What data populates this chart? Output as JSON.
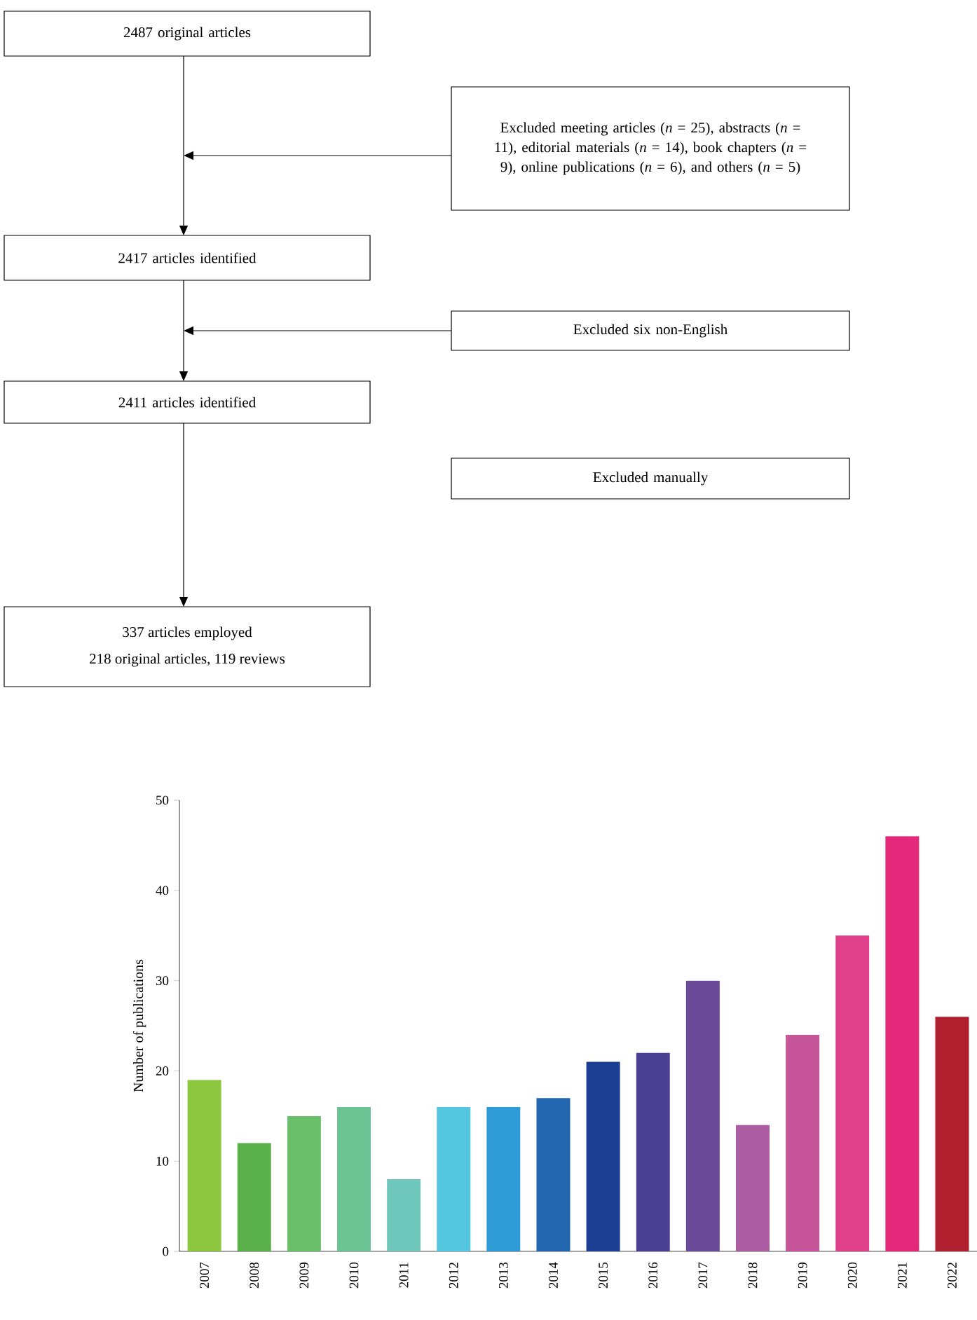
{
  "chart_data": [
    {
      "type": "other",
      "annotations": [
        "2487 original articles",
        "Excluded meeting articles (*n* = 25), abstracts (*n* = 11), editorial materials (*n* = 14), book chapters (*n* = 9), online publications (*n* = 6), and others (*n* = 5)",
        "2417 articles identified",
        "Excluded six non-English",
        "2411 articles identified",
        "Excluded manually",
        "337 articles employed",
        "218 original articles, 119 reviews"
      ]
    },
    {
      "type": "bar",
      "ylabel": "Number of publications",
      "categories": [
        "2007",
        "2008",
        "2009",
        "2010",
        "2011",
        "2012",
        "2013",
        "2014",
        "2015",
        "2016",
        "2017",
        "2018",
        "2019",
        "2020",
        "2021",
        "2022"
      ],
      "values": [
        19,
        12,
        15,
        16,
        8,
        16,
        16,
        17,
        21,
        22,
        30,
        14,
        24,
        35,
        46,
        26
      ],
      "colors": [
        "#8dc63f",
        "#5ab04a",
        "#6abf6a",
        "#6cc495",
        "#6fc8bb",
        "#54c6e0",
        "#2e9ad6",
        "#2266b0",
        "#1c3f94",
        "#4b3f94",
        "#6b4a9a",
        "#ad5ea2",
        "#c7559a",
        "#e0418a",
        "#e5297a",
        "#b0202e"
      ],
      "ylim": [
        0,
        50
      ],
      "yticks": [
        0,
        10,
        20,
        30,
        40,
        50
      ]
    }
  ]
}
